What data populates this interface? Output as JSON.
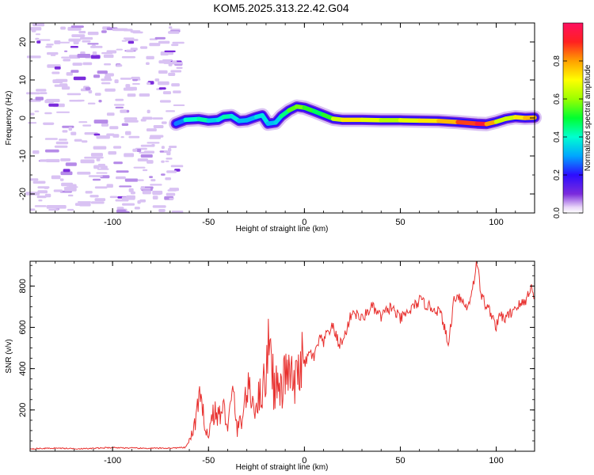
{
  "title": "KOM5.2025.313.22.42.G04",
  "colors": {
    "snr_line": "#e8312f",
    "axis": "#000000"
  },
  "chart_data": [
    {
      "type": "heatmap",
      "name": "spectrogram",
      "xlabel": "Height of straight line (km)",
      "ylabel": "Frequency (Hz)",
      "xlim": [
        -143,
        120
      ],
      "ylim": [
        -25,
        25
      ],
      "xticks": [
        -100,
        -50,
        0,
        50,
        100
      ],
      "yticks": [
        -20,
        -10,
        0,
        10,
        20
      ],
      "colorbar": {
        "label": "Normalized spectral amplitude",
        "range": [
          0,
          1
        ],
        "ticks": [
          0.0,
          0.2,
          0.4,
          0.6,
          0.8
        ],
        "tick_labels": [
          "0.0",
          "0.2",
          "0.4",
          "0.6",
          "0.8"
        ]
      },
      "noise_region_x": [
        -143,
        -65
      ],
      "ridge_points": [
        [
          -67,
          -1.5
        ],
        [
          -62,
          -0.5
        ],
        [
          -55,
          -0.3
        ],
        [
          -50,
          -0.7
        ],
        [
          -45,
          -0.5
        ],
        [
          -42,
          0.3
        ],
        [
          -38,
          0.5
        ],
        [
          -34,
          -0.8
        ],
        [
          -30,
          -0.6
        ],
        [
          -25,
          0.3
        ],
        [
          -22,
          0.7
        ],
        [
          -19,
          -1.5
        ],
        [
          -15,
          -1.2
        ],
        [
          -12,
          0.5
        ],
        [
          -8,
          2.0
        ],
        [
          -4,
          3.0
        ],
        [
          0,
          2.7
        ],
        [
          5,
          1.8
        ],
        [
          10,
          0.8
        ],
        [
          15,
          -0.2
        ],
        [
          20,
          -0.5
        ],
        [
          30,
          -0.5
        ],
        [
          40,
          -0.6
        ],
        [
          50,
          -0.6
        ],
        [
          60,
          -0.7
        ],
        [
          70,
          -0.8
        ],
        [
          80,
          -1.1
        ],
        [
          90,
          -1.5
        ],
        [
          95,
          -1.6
        ],
        [
          100,
          -1.0
        ],
        [
          105,
          -0.2
        ],
        [
          110,
          0.2
        ],
        [
          115,
          0.0
        ],
        [
          120,
          0.1
        ]
      ],
      "ridge_amplitude": [
        0.2,
        0.35,
        0.45,
        0.4,
        0.3,
        0.45,
        0.4,
        0.35,
        0.3,
        0.35,
        0.4,
        0.35,
        0.3,
        0.4,
        0.5,
        0.6,
        0.55,
        0.5,
        0.45,
        0.6,
        0.7,
        0.75,
        0.6,
        0.65,
        0.7,
        0.75,
        0.8,
        0.95,
        0.9,
        0.7,
        0.6,
        0.7,
        0.75,
        0.8
      ]
    },
    {
      "type": "line",
      "name": "snr",
      "xlabel": "Height of straight line (km)",
      "ylabel": "SNR (v/v)",
      "xlim": [
        -143,
        120
      ],
      "ylim": [
        0,
        920
      ],
      "xticks": [
        -100,
        -50,
        0,
        50,
        100
      ],
      "yticks": [
        200,
        400,
        600,
        800
      ],
      "series": [
        {
          "name": "SNR",
          "x": [
            -143,
            -130,
            -115,
            -100,
            -85,
            -70,
            -62,
            -58,
            -55,
            -52,
            -50,
            -48,
            -45,
            -42,
            -40,
            -37,
            -35,
            -32,
            -30,
            -27,
            -25,
            -22,
            -20,
            -18,
            -16,
            -15,
            -12,
            -10,
            -7,
            -5,
            -2,
            0,
            3,
            5,
            8,
            10,
            12,
            15,
            18,
            20,
            25,
            30,
            35,
            40,
            45,
            50,
            55,
            60,
            65,
            70,
            72,
            75,
            78,
            80,
            85,
            88,
            90,
            92,
            95,
            98,
            100,
            102,
            105,
            110,
            115,
            118,
            120
          ],
          "values": [
            12,
            15,
            12,
            18,
            14,
            15,
            18,
            90,
            250,
            150,
            60,
            190,
            170,
            200,
            130,
            280,
            100,
            180,
            300,
            240,
            230,
            300,
            360,
            650,
            290,
            330,
            280,
            380,
            360,
            310,
            440,
            420,
            480,
            450,
            550,
            520,
            580,
            600,
            520,
            530,
            680,
            640,
            700,
            650,
            700,
            640,
            680,
            730,
            700,
            680,
            640,
            510,
            740,
            760,
            690,
            810,
            920,
            760,
            700,
            660,
            600,
            660,
            640,
            700,
            720,
            800,
            740
          ]
        }
      ]
    }
  ]
}
